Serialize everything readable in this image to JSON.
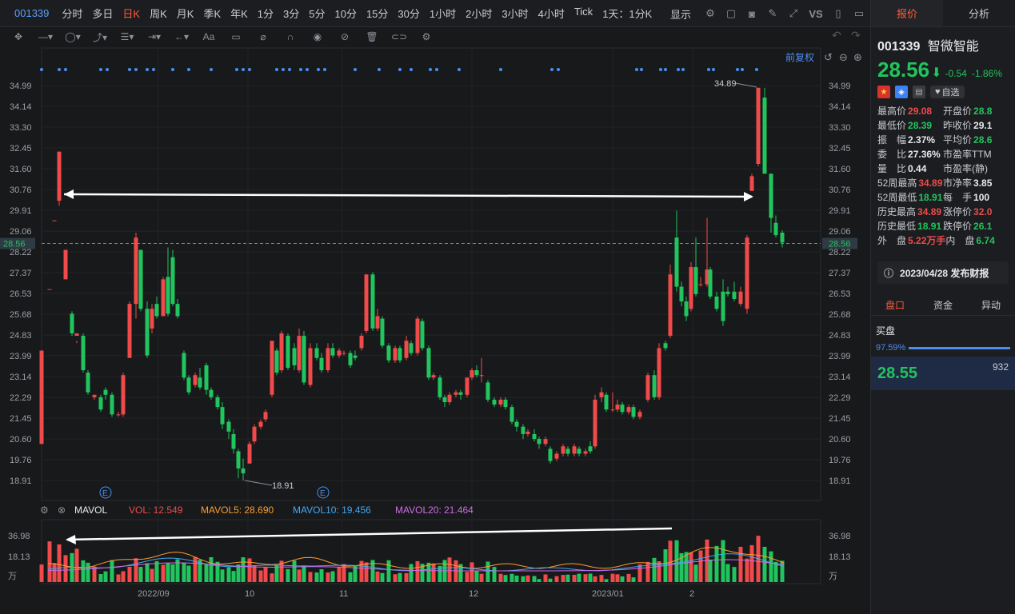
{
  "toolbar": {
    "symbol": "001339",
    "periods": [
      "分时",
      "多日",
      "日K",
      "周K",
      "月K",
      "季K",
      "年K",
      "1分",
      "3分",
      "5分",
      "10分",
      "15分",
      "30分",
      "1小时",
      "2小时",
      "3小时",
      "4小时",
      "Tick",
      "1天：1分K"
    ],
    "active_period": "日K",
    "display_label": "显示",
    "vs_label": "VS"
  },
  "chart": {
    "adjust_label": "前复权",
    "price_axis": [
      "34.99",
      "34.14",
      "33.30",
      "32.45",
      "31.60",
      "30.76",
      "29.91",
      "29.06",
      "28.22",
      "27.37",
      "26.53",
      "25.68",
      "24.83",
      "23.99",
      "23.14",
      "22.29",
      "21.45",
      "20.60",
      "19.76",
      "18.91"
    ],
    "current_price_tag": "28.56",
    "high_label": "34.89",
    "low_label": "18.91",
    "event_marker": "E",
    "date_labels": [
      "2022/09",
      "10",
      "11",
      "12",
      "2023/01",
      "2"
    ],
    "volume_indicator": {
      "name": "MAVOL",
      "vol": "VOL: 12.549",
      "mavol5": "MAVOL5: 28.690",
      "mavol10": "MAVOL10: 19.456",
      "mavol20": "MAVOL20: 21.464"
    },
    "volume_axis": [
      "36.98",
      "18.13",
      "万"
    ],
    "colors": {
      "up": "#f04a4a",
      "down": "#21c55d",
      "ma5": "#ff9d2e",
      "ma10": "#3fa9f5",
      "ma20": "#d06be8",
      "price_line": "#e0643a"
    }
  },
  "right_panel": {
    "tabs": [
      "报价",
      "分析"
    ],
    "code": "001339",
    "name": "智微智能",
    "price": "28.56",
    "change": "-0.54",
    "change_pct": "-1.86%",
    "watch_label": "自选",
    "stats": [
      [
        "最高价",
        "29.08",
        "开盘价",
        "28.8"
      ],
      [
        "最低价",
        "28.39",
        "昨收价",
        "29.1"
      ],
      [
        "振　幅",
        "2.37%",
        "平均价",
        "28.6"
      ],
      [
        "委　比",
        "27.36%",
        "市盈率TTM",
        ""
      ],
      [
        "量　比",
        "0.44",
        "市盈率(静)",
        ""
      ],
      [
        "52周最高",
        "34.89",
        "市净率",
        "3.85"
      ],
      [
        "52周最低",
        "18.91",
        "每　手",
        "100"
      ],
      [
        "历史最高",
        "34.89",
        "涨停价",
        "32.0"
      ],
      [
        "历史最低",
        "18.91",
        "跌停价",
        "26.1"
      ],
      [
        "外　盘",
        "5.22万手",
        "内　盘",
        "6.74"
      ]
    ],
    "notice": "2023/04/28  发布财报",
    "sub_tabs": [
      "盘口",
      "资金",
      "异动"
    ],
    "buy_title": "买盘",
    "buy_ratio": "97.59%",
    "bid_price": "28.55",
    "bid_qty": "932"
  }
}
